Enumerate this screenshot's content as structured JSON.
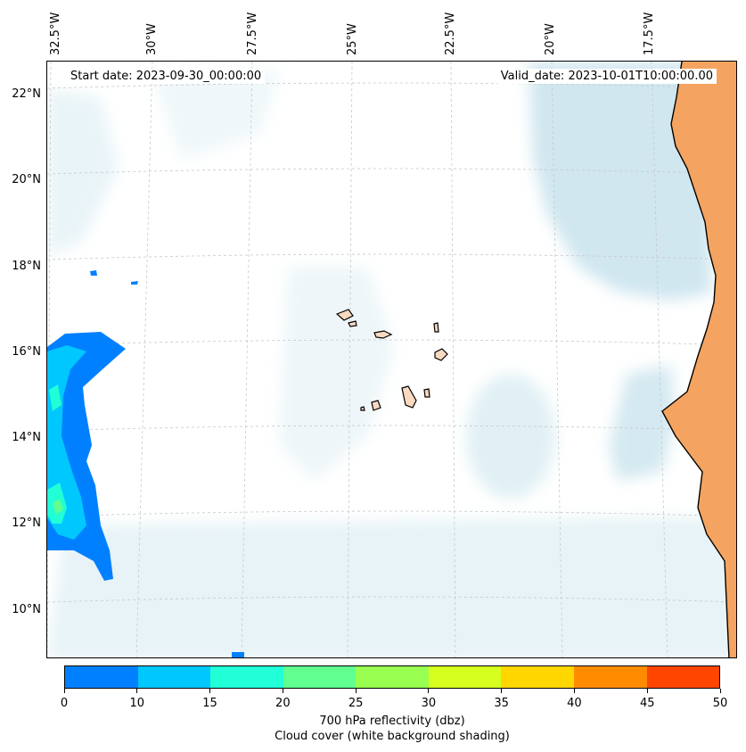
{
  "map": {
    "start_date": "Start date: 2023-09-30_00:00:00",
    "valid_date": "Valid_date: 2023-10-01T10:00:00.00",
    "lon_labels": [
      "32.5°W",
      "30°W",
      "27.5°W",
      "25°W",
      "22.5°W",
      "20°W",
      "17.5°W"
    ],
    "lat_labels": [
      "22°N",
      "20°N",
      "18°N",
      "16°N",
      "14°N",
      "12°N",
      "10°N"
    ],
    "land_color": "#f4a460",
    "cloud_color": "#a9d3e3",
    "coast_color": "#000000"
  },
  "colorbar": {
    "ticks": [
      "0",
      "10",
      "15",
      "20",
      "25",
      "30",
      "35",
      "40",
      "45",
      "50"
    ],
    "colors": [
      "#0080ff",
      "#00c8ff",
      "#20ffd6",
      "#60ff90",
      "#98ff50",
      "#d6ff20",
      "#ffd600",
      "#ff8c00",
      "#ff4500"
    ],
    "label_line1": "700 hPa reflectivity (dbz)",
    "label_line2": "Cloud cover (white background shading)"
  }
}
